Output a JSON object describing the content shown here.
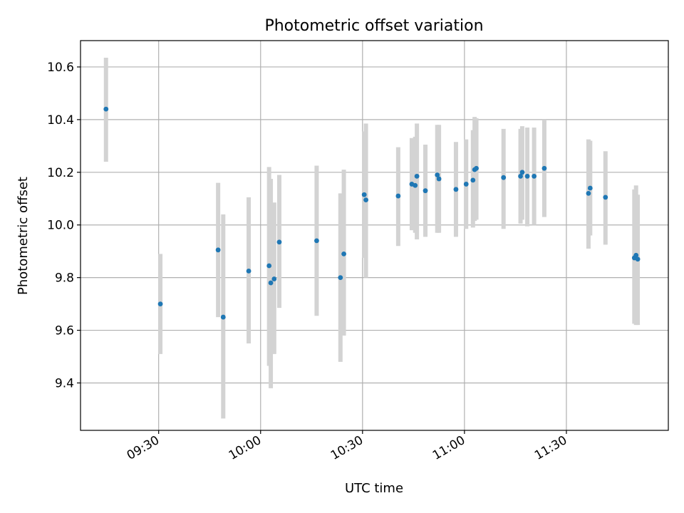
{
  "chart_data": {
    "type": "scatter",
    "title": "Photometric offset variation",
    "xlabel": "UTC time",
    "ylabel": "Photometric offset",
    "x_ticks": [
      "09:30",
      "10:00",
      "10:30",
      "11:00",
      "11:30"
    ],
    "y_ticks": [
      "9.4",
      "9.6",
      "9.8",
      "10.0",
      "10.2",
      "10.4",
      "10.6"
    ],
    "xlim": [
      "09:07",
      "12:00"
    ],
    "ylim": [
      9.22,
      10.7
    ],
    "grid": true,
    "colors": {
      "point": "#1f77b4",
      "errorbar": "#d3d3d3",
      "grid": "#b0b0b0"
    },
    "points": [
      {
        "x": "09:14:30",
        "y": 10.44,
        "ylow": 10.24,
        "yhigh": 10.635
      },
      {
        "x": "09:30:30",
        "y": 9.7,
        "ylow": 9.51,
        "yhigh": 9.89
      },
      {
        "x": "09:47:30",
        "y": 9.905,
        "ylow": 9.65,
        "yhigh": 10.16
      },
      {
        "x": "09:49:00",
        "y": 9.65,
        "ylow": 9.265,
        "yhigh": 10.04
      },
      {
        "x": "09:56:30",
        "y": 9.825,
        "ylow": 9.55,
        "yhigh": 10.105
      },
      {
        "x": "10:02:30",
        "y": 9.845,
        "ylow": 9.465,
        "yhigh": 10.22
      },
      {
        "x": "10:03:00",
        "y": 9.78,
        "ylow": 9.38,
        "yhigh": 10.175
      },
      {
        "x": "10:04:00",
        "y": 9.795,
        "ylow": 9.51,
        "yhigh": 10.085
      },
      {
        "x": "10:05:30",
        "y": 9.935,
        "ylow": 9.685,
        "yhigh": 10.19
      },
      {
        "x": "10:16:30",
        "y": 9.94,
        "ylow": 9.655,
        "yhigh": 10.225
      },
      {
        "x": "10:23:30",
        "y": 9.8,
        "ylow": 9.48,
        "yhigh": 10.12
      },
      {
        "x": "10:24:30",
        "y": 9.89,
        "ylow": 9.58,
        "yhigh": 10.21
      },
      {
        "x": "10:30:30",
        "y": 10.115,
        "ylow": 9.875,
        "yhigh": 10.355
      },
      {
        "x": "10:31:00",
        "y": 10.095,
        "ylow": 9.8,
        "yhigh": 10.385
      },
      {
        "x": "10:40:30",
        "y": 10.11,
        "ylow": 9.92,
        "yhigh": 10.295
      },
      {
        "x": "10:44:30",
        "y": 10.155,
        "ylow": 9.98,
        "yhigh": 10.33
      },
      {
        "x": "10:45:30",
        "y": 10.15,
        "ylow": 9.97,
        "yhigh": 10.335
      },
      {
        "x": "10:46:00",
        "y": 10.185,
        "ylow": 9.945,
        "yhigh": 10.385
      },
      {
        "x": "10:48:30",
        "y": 10.13,
        "ylow": 9.955,
        "yhigh": 10.305
      },
      {
        "x": "10:52:00",
        "y": 10.19,
        "ylow": 9.97,
        "yhigh": 10.38
      },
      {
        "x": "10:52:30",
        "y": 10.175,
        "ylow": 9.97,
        "yhigh": 10.38
      },
      {
        "x": "10:57:30",
        "y": 10.135,
        "ylow": 9.955,
        "yhigh": 10.315
      },
      {
        "x": "11:00:30",
        "y": 10.155,
        "ylow": 9.985,
        "yhigh": 10.325
      },
      {
        "x": "11:02:30",
        "y": 10.17,
        "ylow": 9.99,
        "yhigh": 10.36
      },
      {
        "x": "11:03:00",
        "y": 10.21,
        "ylow": 10.015,
        "yhigh": 10.41
      },
      {
        "x": "11:03:30",
        "y": 10.215,
        "ylow": 10.02,
        "yhigh": 10.405
      },
      {
        "x": "11:11:30",
        "y": 10.18,
        "ylow": 9.985,
        "yhigh": 10.365
      },
      {
        "x": "11:16:30",
        "y": 10.185,
        "ylow": 10.005,
        "yhigh": 10.365
      },
      {
        "x": "11:17:00",
        "y": 10.2,
        "ylow": 10.02,
        "yhigh": 10.375
      },
      {
        "x": "11:18:30",
        "y": 10.185,
        "ylow": 9.995,
        "yhigh": 10.37
      },
      {
        "x": "11:20:30",
        "y": 10.185,
        "ylow": 10.0,
        "yhigh": 10.37
      },
      {
        "x": "11:23:30",
        "y": 10.215,
        "ylow": 10.03,
        "yhigh": 10.4
      },
      {
        "x": "11:36:30",
        "y": 10.12,
        "ylow": 9.91,
        "yhigh": 10.325
      },
      {
        "x": "11:37:00",
        "y": 10.14,
        "ylow": 9.96,
        "yhigh": 10.32
      },
      {
        "x": "11:41:30",
        "y": 10.105,
        "ylow": 9.925,
        "yhigh": 10.28
      },
      {
        "x": "11:50:00",
        "y": 9.875,
        "ylow": 9.625,
        "yhigh": 10.135
      },
      {
        "x": "11:50:30",
        "y": 9.885,
        "ylow": 9.62,
        "yhigh": 10.15
      },
      {
        "x": "11:51:00",
        "y": 9.87,
        "ylow": 9.62,
        "yhigh": 10.115
      }
    ]
  }
}
